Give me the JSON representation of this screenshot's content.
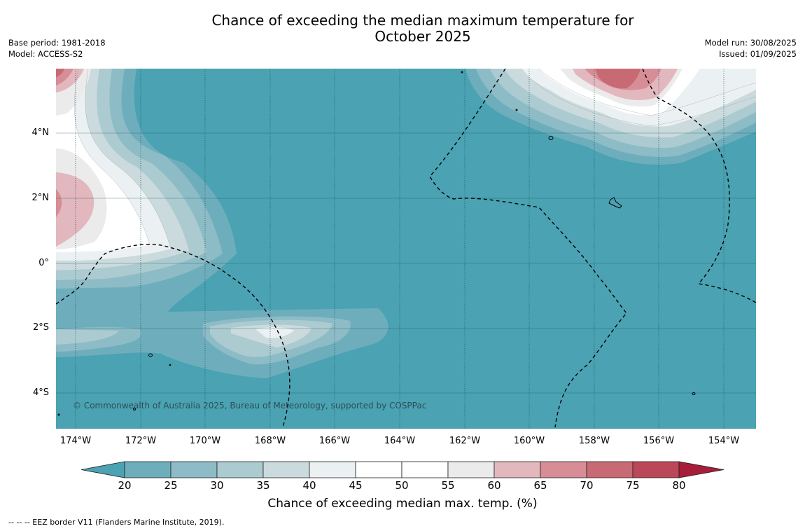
{
  "header": {
    "title_line1": "Chance of exceeding the median maximum temperature for",
    "title_line2": "October 2025",
    "base_period": "Base period: 1981-2018",
    "model": "Model: ACCESS-S2",
    "model_run": "Model run: 30/08/2025",
    "issued": "Issued: 01/09/2025"
  },
  "map": {
    "lat_labels": [
      "4°N",
      "2°N",
      "0°",
      "2°S",
      "4°S"
    ],
    "lon_labels": [
      "174°W",
      "172°W",
      "170°W",
      "168°W",
      "166°W",
      "164°W",
      "162°W",
      "160°W",
      "158°W",
      "156°W",
      "154°W"
    ],
    "copyright": "© Commonwealth of Australia 2025, Bureau of Meteorology, supported by COSPPac",
    "background_class": "20-25",
    "ocean_color": "#4aa2b2"
  },
  "colorbar": {
    "ticks": [
      "20",
      "25",
      "30",
      "35",
      "40",
      "45",
      "50",
      "55",
      "60",
      "65",
      "70",
      "75",
      "80"
    ],
    "colors": [
      "#4aa2b2",
      "#6eaebc",
      "#8dbcc6",
      "#abcbd1",
      "#cbdadd",
      "#ebf1f2",
      "#ffffff",
      "#ffffff",
      "#ecebeb",
      "#e2b7bd",
      "#d78d96",
      "#c86a73",
      "#bb4859",
      "#a81e3a"
    ],
    "label": "Chance of exceeding median max. temp. (%)"
  },
  "footnote": "--  --  -- EEZ border V11 (Flanders Marine Institute, 2019)."
}
